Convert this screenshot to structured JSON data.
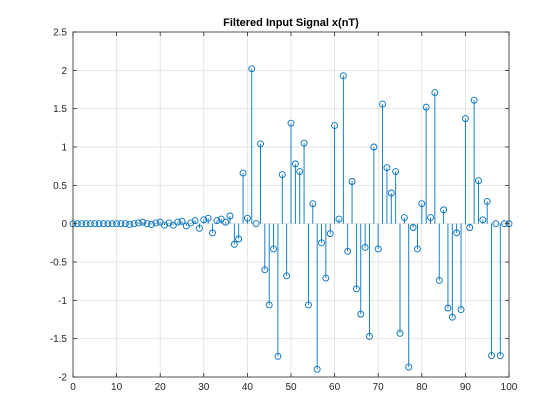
{
  "chart_data": {
    "type": "stem",
    "title": "Filtered Input Signal x(nT)",
    "xlabel": "",
    "ylabel": "",
    "xlim": [
      0,
      100
    ],
    "ylim": [
      -2,
      2.5
    ],
    "xticks": [
      "0",
      "10",
      "20",
      "30",
      "40",
      "50",
      "60",
      "70",
      "80",
      "90",
      "100"
    ],
    "yticks": [
      "-2",
      "-1.5",
      "-1",
      "-0.5",
      "0",
      "0.5",
      "1",
      "1.5",
      "2",
      "2.5"
    ],
    "grid": true,
    "color": "#0072BD",
    "series": [
      {
        "x": [
          0,
          1,
          2,
          3,
          4,
          5,
          6,
          7,
          8,
          9,
          10,
          11,
          12,
          13,
          14,
          15,
          16,
          17,
          18,
          19,
          20,
          21,
          22,
          23,
          24,
          25,
          26,
          27,
          28,
          29,
          30,
          31,
          32,
          33,
          34,
          35,
          36,
          37,
          38,
          39,
          40,
          41,
          42,
          43,
          44,
          45,
          46,
          47,
          48,
          49,
          50,
          51,
          52,
          53,
          54,
          55,
          56,
          57,
          58,
          59,
          60,
          61,
          62,
          63,
          64,
          65,
          66,
          67,
          68,
          69,
          70,
          71,
          72,
          73,
          74,
          75,
          76,
          77,
          78,
          79,
          80,
          81,
          82,
          83,
          84,
          85,
          86,
          87,
          88,
          89,
          90,
          91,
          92,
          93,
          94,
          95,
          96,
          97,
          98,
          99,
          100
        ],
        "y": [
          0,
          0,
          0,
          0,
          0,
          0,
          0,
          0,
          0,
          0,
          0,
          0,
          0,
          -0.01,
          0,
          0.01,
          0.02,
          0,
          -0.01,
          0.01,
          0.02,
          -0.02,
          0.01,
          -0.02,
          0.02,
          0.03,
          -0.03,
          0.01,
          0.04,
          -0.06,
          0.05,
          0.07,
          -0.12,
          0.04,
          0.06,
          0.02,
          0.1,
          -0.27,
          -0.2,
          0.66,
          0.07,
          2.02,
          0,
          1.04,
          -0.6,
          -1.06,
          -0.33,
          -1.73,
          0.64,
          -0.68,
          1.31,
          0.78,
          0.68,
          1.05,
          -1.06,
          0.26,
          -1.9,
          -0.25,
          -0.71,
          -0.13,
          1.28,
          0.06,
          1.93,
          -0.36,
          0.55,
          -0.85,
          -1.18,
          -0.31,
          -1.47,
          1.0,
          -0.33,
          1.56,
          0.73,
          0.4,
          0.68,
          -1.43,
          0.08,
          -1.87,
          -0.05,
          -0.33,
          0.26,
          1.52,
          0.08,
          1.71,
          -0.74,
          0.18,
          -1.1,
          -1.22,
          -0.12,
          -1.12,
          1.37,
          -0.05,
          1.61,
          0.56,
          0.05,
          0.29,
          -1.72,
          0,
          -1.72,
          0,
          0
        ]
      }
    ]
  }
}
